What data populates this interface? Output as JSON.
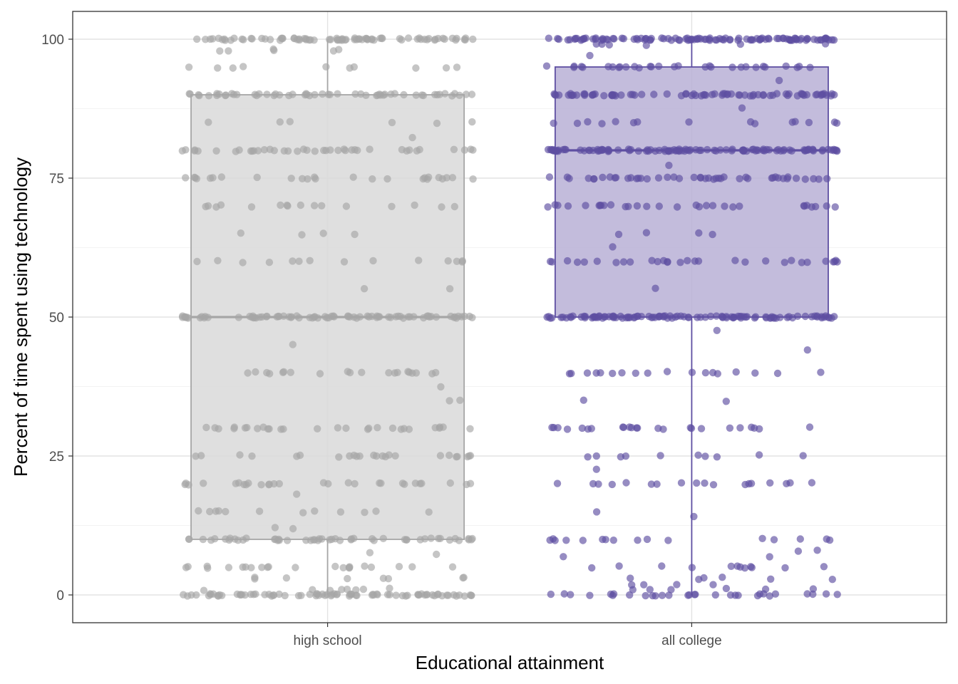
{
  "chart_data": {
    "type": "boxplot-jitter",
    "xlabel": "Educational attainment",
    "ylabel": "Percent of time spent using technology",
    "ylim": [
      -5,
      105
    ],
    "yticks": [
      0,
      25,
      50,
      75,
      100
    ],
    "grid": true,
    "legend": "none",
    "categories": [
      "high school",
      "all college"
    ],
    "groups": [
      {
        "category": "high school",
        "color": "#a6a6a6",
        "fill": "#d9d9d9",
        "box": {
          "min": 0,
          "q1": 10,
          "median": 50,
          "q3": 90,
          "max": 100
        },
        "levels": [
          {
            "y": 100,
            "n": 80
          },
          {
            "y": 98,
            "n": 6
          },
          {
            "y": 95,
            "n": 10
          },
          {
            "y": 90,
            "n": 55
          },
          {
            "y": 85,
            "n": 6
          },
          {
            "y": 82.5,
            "n": 1
          },
          {
            "y": 80,
            "n": 40
          },
          {
            "y": 75,
            "n": 25
          },
          {
            "y": 70,
            "n": 16
          },
          {
            "y": 65,
            "n": 4
          },
          {
            "y": 60,
            "n": 14
          },
          {
            "y": 55,
            "n": 2
          },
          {
            "y": 50,
            "n": 80
          },
          {
            "y": 45,
            "n": 1
          },
          {
            "y": 40,
            "n": 20
          },
          {
            "y": 37.5,
            "n": 1
          },
          {
            "y": 35,
            "n": 2
          },
          {
            "y": 30,
            "n": 28
          },
          {
            "y": 25,
            "n": 24
          },
          {
            "y": 20,
            "n": 28
          },
          {
            "y": 18,
            "n": 1
          },
          {
            "y": 15,
            "n": 12
          },
          {
            "y": 12,
            "n": 2
          },
          {
            "y": 10,
            "n": 50
          },
          {
            "y": 7.5,
            "n": 2
          },
          {
            "y": 5,
            "n": 22
          },
          {
            "y": 3,
            "n": 8
          },
          {
            "y": 1,
            "n": 8
          },
          {
            "y": 0,
            "n": 80
          }
        ]
      },
      {
        "category": "all college",
        "color": "#5e4fa2",
        "fill": "#b8b0d6",
        "box": {
          "min": 0,
          "q1": 50,
          "median": 80,
          "q3": 95,
          "max": 100
        },
        "levels": [
          {
            "y": 100,
            "n": 110
          },
          {
            "y": 99,
            "n": 6
          },
          {
            "y": 97,
            "n": 1
          },
          {
            "y": 95,
            "n": 30
          },
          {
            "y": 92.5,
            "n": 1
          },
          {
            "y": 90,
            "n": 80
          },
          {
            "y": 87.5,
            "n": 1
          },
          {
            "y": 85,
            "n": 15
          },
          {
            "y": 80,
            "n": 110
          },
          {
            "y": 77.5,
            "n": 1
          },
          {
            "y": 75,
            "n": 45
          },
          {
            "y": 70,
            "n": 30
          },
          {
            "y": 65,
            "n": 4
          },
          {
            "y": 62.5,
            "n": 1
          },
          {
            "y": 60,
            "n": 30
          },
          {
            "y": 55,
            "n": 1
          },
          {
            "y": 50,
            "n": 110
          },
          {
            "y": 47.5,
            "n": 1
          },
          {
            "y": 44,
            "n": 1
          },
          {
            "y": 40,
            "n": 18
          },
          {
            "y": 35,
            "n": 2
          },
          {
            "y": 30,
            "n": 24
          },
          {
            "y": 25,
            "n": 10
          },
          {
            "y": 22.5,
            "n": 1
          },
          {
            "y": 20,
            "n": 18
          },
          {
            "y": 15,
            "n": 1
          },
          {
            "y": 14,
            "n": 1
          },
          {
            "y": 10,
            "n": 16
          },
          {
            "y": 8,
            "n": 2
          },
          {
            "y": 7,
            "n": 2
          },
          {
            "y": 5,
            "n": 12
          },
          {
            "y": 3,
            "n": 6
          },
          {
            "y": 2,
            "n": 4
          },
          {
            "y": 1,
            "n": 6
          },
          {
            "y": 0,
            "n": 30
          }
        ]
      }
    ]
  }
}
